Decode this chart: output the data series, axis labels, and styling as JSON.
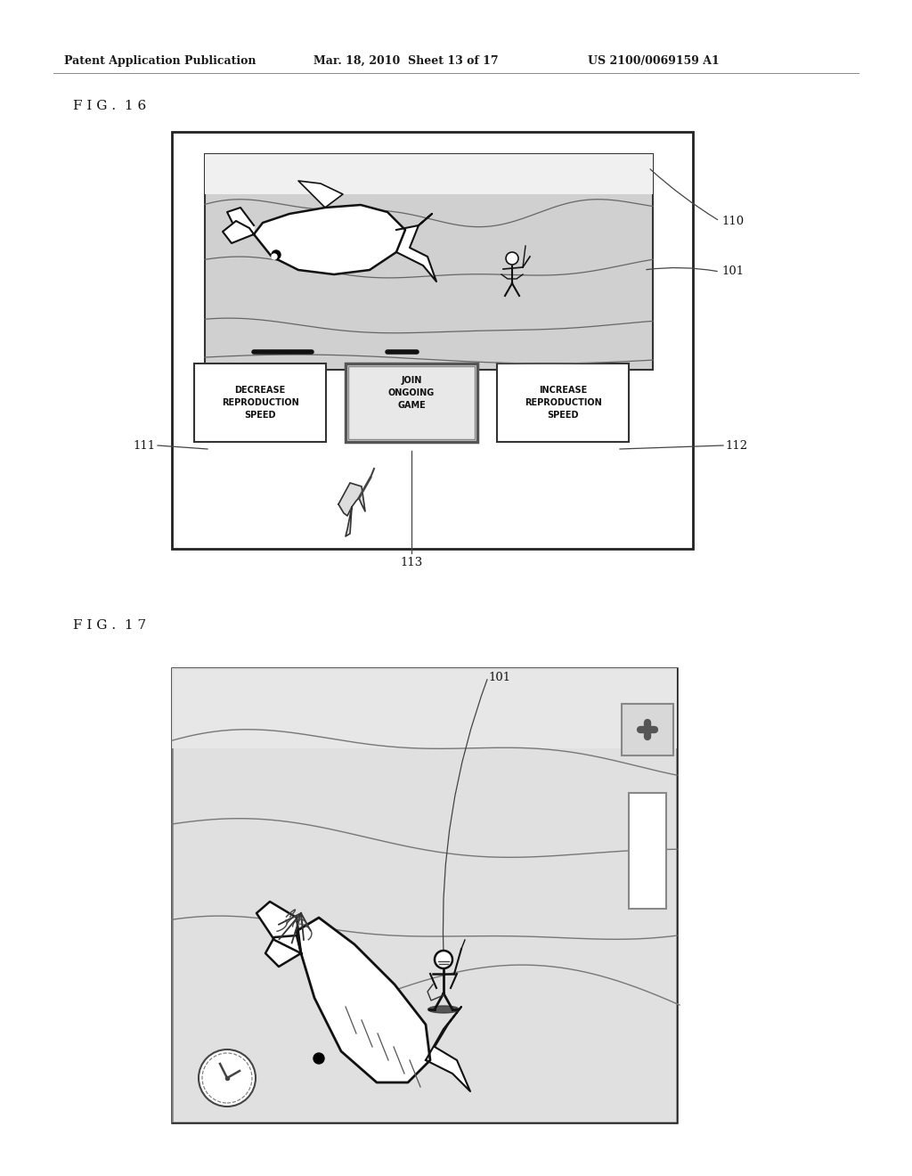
{
  "bg_color": "#ffffff",
  "header_text": "Patent Application Publication",
  "header_date": "Mar. 18, 2010  Sheet 13 of 17",
  "header_patent": "US 2100/0069159 A1",
  "fig16_label": "F I G .  1 6",
  "fig17_label": "F I G .  1 7",
  "label_110": "110",
  "label_101": "101",
  "label_111": "111",
  "label_112": "112",
  "label_113": "113",
  "label_101b": "101",
  "btn1_text": "DECREASE\nREPRODUCTION\nSPEED",
  "btn2_text": "JOIN\nONGOING\nGAME",
  "btn3_text": "INCREASE\nREPRODUCTION\nSPEED"
}
